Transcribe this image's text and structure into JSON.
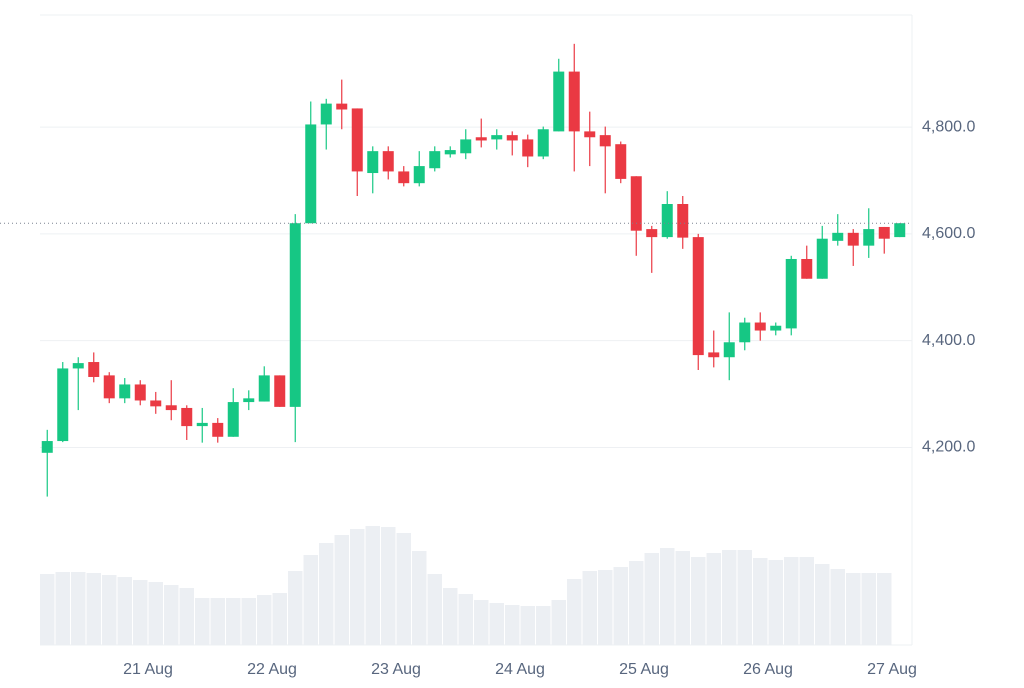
{
  "chart_data": {
    "type": "candlestick",
    "categories": [
      null,
      null,
      null,
      null,
      null,
      null,
      null,
      "21 Aug",
      null,
      null,
      null,
      null,
      null,
      null,
      null,
      "22 Aug",
      null,
      null,
      null,
      null,
      null,
      null,
      null,
      "23 Aug",
      null,
      null,
      null,
      null,
      null,
      null,
      null,
      "24 Aug",
      null,
      null,
      null,
      null,
      null,
      null,
      null,
      "25 Aug",
      null,
      null,
      null,
      null,
      null,
      null,
      null,
      "26 Aug",
      null,
      null,
      null,
      null,
      null,
      null,
      null,
      "27 Aug"
    ],
    "open": [
      4190,
      4212,
      4348,
      4360,
      4335,
      4292,
      4318,
      4288,
      4279,
      4274,
      4240,
      4246,
      4220,
      4285,
      4286,
      4335,
      4276,
      4620,
      4805,
      4844,
      4835,
      4714,
      4755,
      4717,
      4695,
      4723,
      4749,
      4751,
      4781,
      4777,
      4785,
      4777,
      4745,
      4792,
      4904,
      4792,
      4785,
      4768,
      4708,
      4609,
      4594,
      4656,
      4594,
      4378,
      4369,
      4397,
      4434,
      4419,
      4423,
      4553,
      4516,
      4587,
      4602,
      4578,
      4613,
      4594
    ],
    "high": [
      4233,
      4360,
      4369,
      4378,
      4341,
      4330,
      4326,
      4304,
      4326,
      4279,
      4274,
      4255,
      4311,
      4307,
      4352,
      4335,
      4637,
      4848,
      4853,
      4889,
      4835,
      4764,
      4764,
      4727,
      4755,
      4764,
      4764,
      4796,
      4816,
      4796,
      4792,
      4786,
      4801,
      4928,
      4956,
      4829,
      4801,
      4773,
      4708,
      4615,
      4680,
      4671,
      4600,
      4419,
      4453,
      4443,
      4453,
      4434,
      4559,
      4578,
      4615,
      4637,
      4609,
      4648,
      4613,
      4620
    ],
    "low": [
      4108,
      4210,
      4270,
      4322,
      4283,
      4283,
      4279,
      4263,
      4251,
      4214,
      4209,
      4209,
      4220,
      4270,
      4286,
      4276,
      4210,
      4620,
      4758,
      4796,
      4671,
      4676,
      4702,
      4689,
      4689,
      4717,
      4743,
      4740,
      4762,
      4758,
      4747,
      4725,
      4740,
      4792,
      4717,
      4727,
      4676,
      4695,
      4559,
      4527,
      4591,
      4572,
      4345,
      4350,
      4326,
      4382,
      4400,
      4410,
      4410,
      4516,
      4516,
      4578,
      4540,
      4555,
      4563,
      4594
    ],
    "close": [
      4212,
      4348,
      4358,
      4332,
      4292,
      4318,
      4288,
      4277,
      4270,
      4240,
      4246,
      4220,
      4285,
      4292,
      4335,
      4276,
      4620,
      4805,
      4844,
      4833,
      4717,
      4755,
      4717,
      4695,
      4727,
      4755,
      4757,
      4777,
      4775,
      4785,
      4775,
      4745,
      4796,
      4904,
      4792,
      4781,
      4764,
      4703,
      4606,
      4594,
      4656,
      4593,
      4373,
      4369,
      4397,
      4434,
      4419,
      4428,
      4553,
      4516,
      4591,
      4602,
      4578,
      4609,
      4591,
      4620
    ],
    "volume": [
      71,
      73,
      73,
      72,
      70,
      68,
      65,
      63,
      60,
      57,
      47,
      47,
      47,
      47,
      50,
      52,
      74,
      90,
      102,
      110,
      116,
      119,
      118,
      112,
      94,
      71,
      57,
      51,
      45,
      42,
      40,
      39,
      39,
      45,
      66,
      74,
      75,
      78,
      84,
      92,
      97,
      94,
      88,
      92,
      95,
      95,
      87,
      85,
      88,
      88,
      81,
      76,
      72,
      72,
      72,
      null
    ],
    "up_color": "#16c784",
    "down_color": "#ea3943",
    "volume_color": "#eceff3",
    "ylim": [
      3830,
      5010
    ],
    "yticks": [
      {
        "value": 4200,
        "label": "4,200.0"
      },
      {
        "value": 4400,
        "label": "4,400.0"
      },
      {
        "value": 4600,
        "label": "4,600.0"
      },
      {
        "value": 4800,
        "label": "4,800.0"
      }
    ],
    "vlim": [
      0,
      140
    ],
    "last_price": 4620,
    "grid": true
  }
}
